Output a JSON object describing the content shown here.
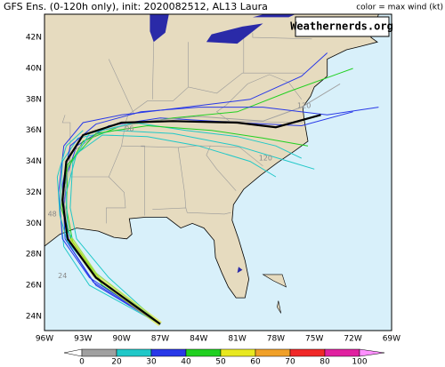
{
  "header": {
    "title": "GFS Ens. (0-120h only), init: 2020082512, AL13 Laura",
    "legend_note": "color = max wind (kt)"
  },
  "watermark": "Weathernerds.org",
  "lat_labels": [
    "42N",
    "40N",
    "38N",
    "36N",
    "34N",
    "32N",
    "30N",
    "28N",
    "26N",
    "24N"
  ],
  "lon_labels": [
    "96W",
    "93W",
    "90W",
    "87W",
    "84W",
    "81W",
    "78W",
    "75W",
    "72W",
    "69W"
  ],
  "track_labels": [
    "120",
    "96",
    "120",
    "48",
    "24"
  ],
  "colorbar": {
    "labels": [
      "0",
      "20",
      "30",
      "40",
      "50",
      "60",
      "70",
      "80",
      "100"
    ],
    "colors": [
      "#a0a0a0",
      "#20c8c8",
      "#2838e8",
      "#20d020",
      "#e8e820",
      "#f0a028",
      "#f02828",
      "#e020a0"
    ]
  }
}
